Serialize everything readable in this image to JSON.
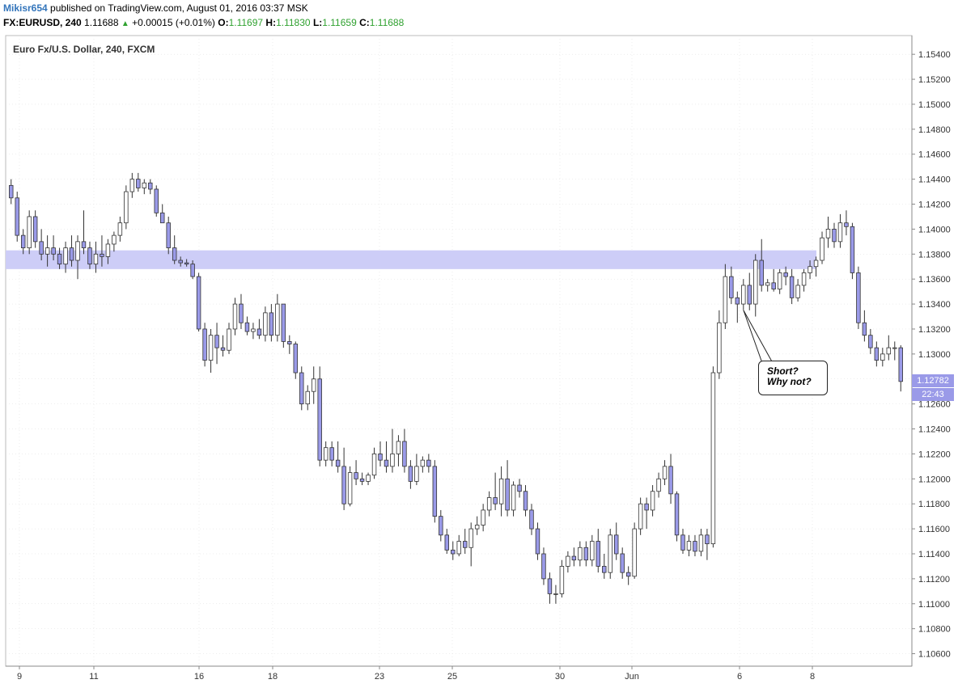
{
  "header": {
    "author": "Mikisr654",
    "published": "published on TradingView.com, August 01, 2016 03:37 MSK",
    "symbol": "FX:EURUSD, 240",
    "last": "1.11688",
    "change": "+0.00015 (+0.01%)",
    "o_label": "O:",
    "o_value": "1.11697",
    "h_label": "H:",
    "h_value": "1.11830",
    "l_label": "L:",
    "l_value": "1.11659",
    "c_label": "C:",
    "c_value": "1.11688"
  },
  "annotation": {
    "line1": "Short?",
    "line2": "Why not?"
  },
  "price_badge": "1.12782",
  "time_badge": "22:43",
  "colors": {
    "up_body": "#ffffff",
    "down_body": "#9a9ae8",
    "wick": "#333333",
    "zone": "#cdcdf7",
    "grid": "#dddddd"
  },
  "chart_data": {
    "type": "candlestick",
    "title": "Euro Fx/U.S. Dollar, 240, FXCM",
    "ylim": [
      1.105,
      1.1555
    ],
    "y_ticks": [
      "1.15400",
      "1.15200",
      "1.15000",
      "1.14800",
      "1.14600",
      "1.14400",
      "1.14200",
      "1.14000",
      "1.13800",
      "1.13600",
      "1.13400",
      "1.13200",
      "1.13000",
      "1.12800",
      "1.12600",
      "1.12400",
      "1.12200",
      "1.12000",
      "1.11800",
      "1.11600",
      "1.11400",
      "1.11200",
      "1.11000",
      "1.10800",
      "1.10600"
    ],
    "x_ticks": [
      "9",
      "11",
      "16",
      "18",
      "23",
      "25",
      "30",
      "Jun",
      "6",
      "8"
    ],
    "resistance_zone": [
      1.1368,
      1.1383
    ],
    "candles": [
      [
        1.1435,
        1.144,
        1.142,
        1.1425
      ],
      [
        1.1425,
        1.143,
        1.139,
        1.1395
      ],
      [
        1.1395,
        1.14,
        1.138,
        1.1385
      ],
      [
        1.1385,
        1.1415,
        1.138,
        1.141
      ],
      [
        1.141,
        1.1415,
        1.1385,
        1.139
      ],
      [
        1.139,
        1.14,
        1.1375,
        1.138
      ],
      [
        1.138,
        1.1395,
        1.137,
        1.1385
      ],
      [
        1.1385,
        1.1395,
        1.1375,
        1.138
      ],
      [
        1.138,
        1.1385,
        1.1368,
        1.1372
      ],
      [
        1.1372,
        1.139,
        1.1365,
        1.1385
      ],
      [
        1.1385,
        1.1395,
        1.137,
        1.1375
      ],
      [
        1.1375,
        1.1395,
        1.136,
        1.139
      ],
      [
        1.139,
        1.1415,
        1.138,
        1.1385
      ],
      [
        1.1385,
        1.139,
        1.1368,
        1.1372
      ],
      [
        1.1372,
        1.139,
        1.1365,
        1.138
      ],
      [
        1.138,
        1.1395,
        1.137,
        1.1378
      ],
      [
        1.1378,
        1.1392,
        1.1372,
        1.1388
      ],
      [
        1.1388,
        1.1398,
        1.1382,
        1.1395
      ],
      [
        1.1395,
        1.141,
        1.139,
        1.1405
      ],
      [
        1.1405,
        1.1435,
        1.14,
        1.143
      ],
      [
        1.143,
        1.1445,
        1.1425,
        1.144
      ],
      [
        1.144,
        1.1445,
        1.143,
        1.1433
      ],
      [
        1.1433,
        1.144,
        1.1428,
        1.1437
      ],
      [
        1.1437,
        1.144,
        1.1428,
        1.1432
      ],
      [
        1.1432,
        1.1435,
        1.141,
        1.1413
      ],
      [
        1.1413,
        1.142,
        1.1405,
        1.1405
      ],
      [
        1.1405,
        1.141,
        1.138,
        1.1385
      ],
      [
        1.1385,
        1.1395,
        1.1372,
        1.1375
      ],
      [
        1.1375,
        1.1378,
        1.137,
        1.1373
      ],
      [
        1.1373,
        1.1376,
        1.137,
        1.1372
      ],
      [
        1.1372,
        1.1375,
        1.136,
        1.1362
      ],
      [
        1.1362,
        1.1365,
        1.1318,
        1.132
      ],
      [
        1.132,
        1.1325,
        1.129,
        1.1295
      ],
      [
        1.1295,
        1.132,
        1.1285,
        1.1315
      ],
      [
        1.1315,
        1.1325,
        1.1292,
        1.1305
      ],
      [
        1.1305,
        1.1315,
        1.1298,
        1.1303
      ],
      [
        1.1303,
        1.1325,
        1.13,
        1.132
      ],
      [
        1.132,
        1.1345,
        1.1315,
        1.134
      ],
      [
        1.134,
        1.1348,
        1.132,
        1.1325
      ],
      [
        1.1325,
        1.133,
        1.1315,
        1.1318
      ],
      [
        1.1318,
        1.1325,
        1.1312,
        1.132
      ],
      [
        1.132,
        1.1328,
        1.1312,
        1.1315
      ],
      [
        1.1315,
        1.1338,
        1.131,
        1.1333
      ],
      [
        1.1333,
        1.134,
        1.131,
        1.1315
      ],
      [
        1.1315,
        1.1348,
        1.131,
        1.134
      ],
      [
        1.134,
        1.134,
        1.1305,
        1.131
      ],
      [
        1.131,
        1.1315,
        1.13,
        1.1308
      ],
      [
        1.1308,
        1.131,
        1.128,
        1.1285
      ],
      [
        1.1285,
        1.129,
        1.1255,
        1.126
      ],
      [
        1.126,
        1.1275,
        1.1255,
        1.127
      ],
      [
        1.127,
        1.129,
        1.126,
        1.128
      ],
      [
        1.128,
        1.129,
        1.121,
        1.1215
      ],
      [
        1.1215,
        1.123,
        1.121,
        1.1225
      ],
      [
        1.1225,
        1.123,
        1.121,
        1.1215
      ],
      [
        1.1215,
        1.123,
        1.1205,
        1.121
      ],
      [
        1.121,
        1.1225,
        1.1175,
        1.118
      ],
      [
        1.118,
        1.121,
        1.1178,
        1.1205
      ],
      [
        1.1205,
        1.1215,
        1.1195,
        1.12
      ],
      [
        1.12,
        1.1205,
        1.1195,
        1.1198
      ],
      [
        1.1198,
        1.1205,
        1.1195,
        1.1203
      ],
      [
        1.1203,
        1.1225,
        1.12,
        1.122
      ],
      [
        1.122,
        1.123,
        1.121,
        1.1215
      ],
      [
        1.1215,
        1.123,
        1.1205,
        1.121
      ],
      [
        1.121,
        1.124,
        1.1205,
        1.122
      ],
      [
        1.122,
        1.1235,
        1.121,
        1.123
      ],
      [
        1.123,
        1.124,
        1.1205,
        1.121
      ],
      [
        1.121,
        1.1215,
        1.1192,
        1.1198
      ],
      [
        1.1198,
        1.122,
        1.1195,
        1.121
      ],
      [
        1.121,
        1.1218,
        1.1205,
        1.1215
      ],
      [
        1.1215,
        1.122,
        1.1205,
        1.121
      ],
      [
        1.121,
        1.1215,
        1.1165,
        1.117
      ],
      [
        1.117,
        1.1175,
        1.115,
        1.1155
      ],
      [
        1.1155,
        1.116,
        1.114,
        1.1143
      ],
      [
        1.1143,
        1.115,
        1.1135,
        1.114
      ],
      [
        1.114,
        1.1155,
        1.1138,
        1.115
      ],
      [
        1.115,
        1.116,
        1.114,
        1.1145
      ],
      [
        1.1145,
        1.1165,
        1.113,
        1.116
      ],
      [
        1.116,
        1.117,
        1.1155,
        1.1163
      ],
      [
        1.1163,
        1.118,
        1.1158,
        1.1175
      ],
      [
        1.1175,
        1.119,
        1.117,
        1.1185
      ],
      [
        1.1185,
        1.1205,
        1.1175,
        1.118
      ],
      [
        1.118,
        1.121,
        1.117,
        1.12
      ],
      [
        1.12,
        1.1215,
        1.117,
        1.1175
      ],
      [
        1.1175,
        1.1198,
        1.117,
        1.1195
      ],
      [
        1.1195,
        1.12,
        1.1185,
        1.119
      ],
      [
        1.119,
        1.1195,
        1.117,
        1.1175
      ],
      [
        1.1175,
        1.118,
        1.1155,
        1.116
      ],
      [
        1.116,
        1.1165,
        1.1135,
        1.114
      ],
      [
        1.114,
        1.1145,
        1.1115,
        1.112
      ],
      [
        1.112,
        1.1125,
        1.11,
        1.1108
      ],
      [
        1.1108,
        1.1115,
        1.11,
        1.1108
      ],
      [
        1.1108,
        1.1135,
        1.1105,
        1.113
      ],
      [
        1.113,
        1.1142,
        1.1125,
        1.1138
      ],
      [
        1.1138,
        1.1145,
        1.113,
        1.1135
      ],
      [
        1.1135,
        1.115,
        1.113,
        1.1145
      ],
      [
        1.1145,
        1.115,
        1.113,
        1.1135
      ],
      [
        1.1135,
        1.1155,
        1.113,
        1.115
      ],
      [
        1.115,
        1.116,
        1.1125,
        1.113
      ],
      [
        1.113,
        1.114,
        1.112,
        1.1125
      ],
      [
        1.1125,
        1.116,
        1.112,
        1.1155
      ],
      [
        1.1155,
        1.1165,
        1.1135,
        1.114
      ],
      [
        1.114,
        1.1145,
        1.112,
        1.1125
      ],
      [
        1.1125,
        1.113,
        1.1115,
        1.1122
      ],
      [
        1.1122,
        1.1165,
        1.112,
        1.116
      ],
      [
        1.116,
        1.1185,
        1.1155,
        1.118
      ],
      [
        1.118,
        1.1185,
        1.116,
        1.1175
      ],
      [
        1.1175,
        1.1195,
        1.117,
        1.119
      ],
      [
        1.119,
        1.1205,
        1.1185,
        1.12
      ],
      [
        1.12,
        1.1215,
        1.1195,
        1.121
      ],
      [
        1.121,
        1.122,
        1.118,
        1.1188
      ],
      [
        1.1188,
        1.119,
        1.115,
        1.1155
      ],
      [
        1.1155,
        1.116,
        1.114,
        1.1143
      ],
      [
        1.1143,
        1.1155,
        1.1138,
        1.115
      ],
      [
        1.115,
        1.1155,
        1.1138,
        1.1142
      ],
      [
        1.1142,
        1.116,
        1.1138,
        1.1155
      ],
      [
        1.1155,
        1.116,
        1.1135,
        1.1148
      ],
      [
        1.1148,
        1.129,
        1.1145,
        1.1285
      ],
      [
        1.1285,
        1.1335,
        1.128,
        1.1325
      ],
      [
        1.1325,
        1.1372,
        1.132,
        1.1362
      ],
      [
        1.1362,
        1.137,
        1.134,
        1.1345
      ],
      [
        1.1345,
        1.135,
        1.1325,
        1.134
      ],
      [
        1.134,
        1.136,
        1.1335,
        1.1355
      ],
      [
        1.1355,
        1.1365,
        1.1335,
        1.134
      ],
      [
        1.134,
        1.138,
        1.133,
        1.1375
      ],
      [
        1.1375,
        1.1392,
        1.135,
        1.1355
      ],
      [
        1.1355,
        1.136,
        1.135,
        1.1357
      ],
      [
        1.1357,
        1.1368,
        1.135,
        1.1352
      ],
      [
        1.1352,
        1.1368,
        1.1348,
        1.1365
      ],
      [
        1.1365,
        1.137,
        1.1355,
        1.1362
      ],
      [
        1.1362,
        1.1368,
        1.134,
        1.1345
      ],
      [
        1.1345,
        1.136,
        1.1342,
        1.1355
      ],
      [
        1.1355,
        1.1368,
        1.135,
        1.1365
      ],
      [
        1.1365,
        1.1375,
        1.136,
        1.137
      ],
      [
        1.137,
        1.1378,
        1.1362,
        1.1375
      ],
      [
        1.1375,
        1.1398,
        1.1372,
        1.1393
      ],
      [
        1.1393,
        1.141,
        1.1385,
        1.14
      ],
      [
        1.14,
        1.1405,
        1.1385,
        1.139
      ],
      [
        1.139,
        1.1412,
        1.1385,
        1.1405
      ],
      [
        1.1405,
        1.1415,
        1.1395,
        1.1402
      ],
      [
        1.1402,
        1.1405,
        1.136,
        1.1365
      ],
      [
        1.1365,
        1.137,
        1.132,
        1.1325
      ],
      [
        1.1325,
        1.1335,
        1.131,
        1.1315
      ],
      [
        1.1315,
        1.132,
        1.13,
        1.1305
      ],
      [
        1.1305,
        1.131,
        1.129,
        1.1295
      ],
      [
        1.1295,
        1.1305,
        1.129,
        1.13
      ],
      [
        1.13,
        1.1315,
        1.1295,
        1.1305
      ],
      [
        1.1305,
        1.131,
        1.1295,
        1.1305
      ],
      [
        1.1305,
        1.1307,
        1.127,
        1.1278
      ]
    ]
  }
}
